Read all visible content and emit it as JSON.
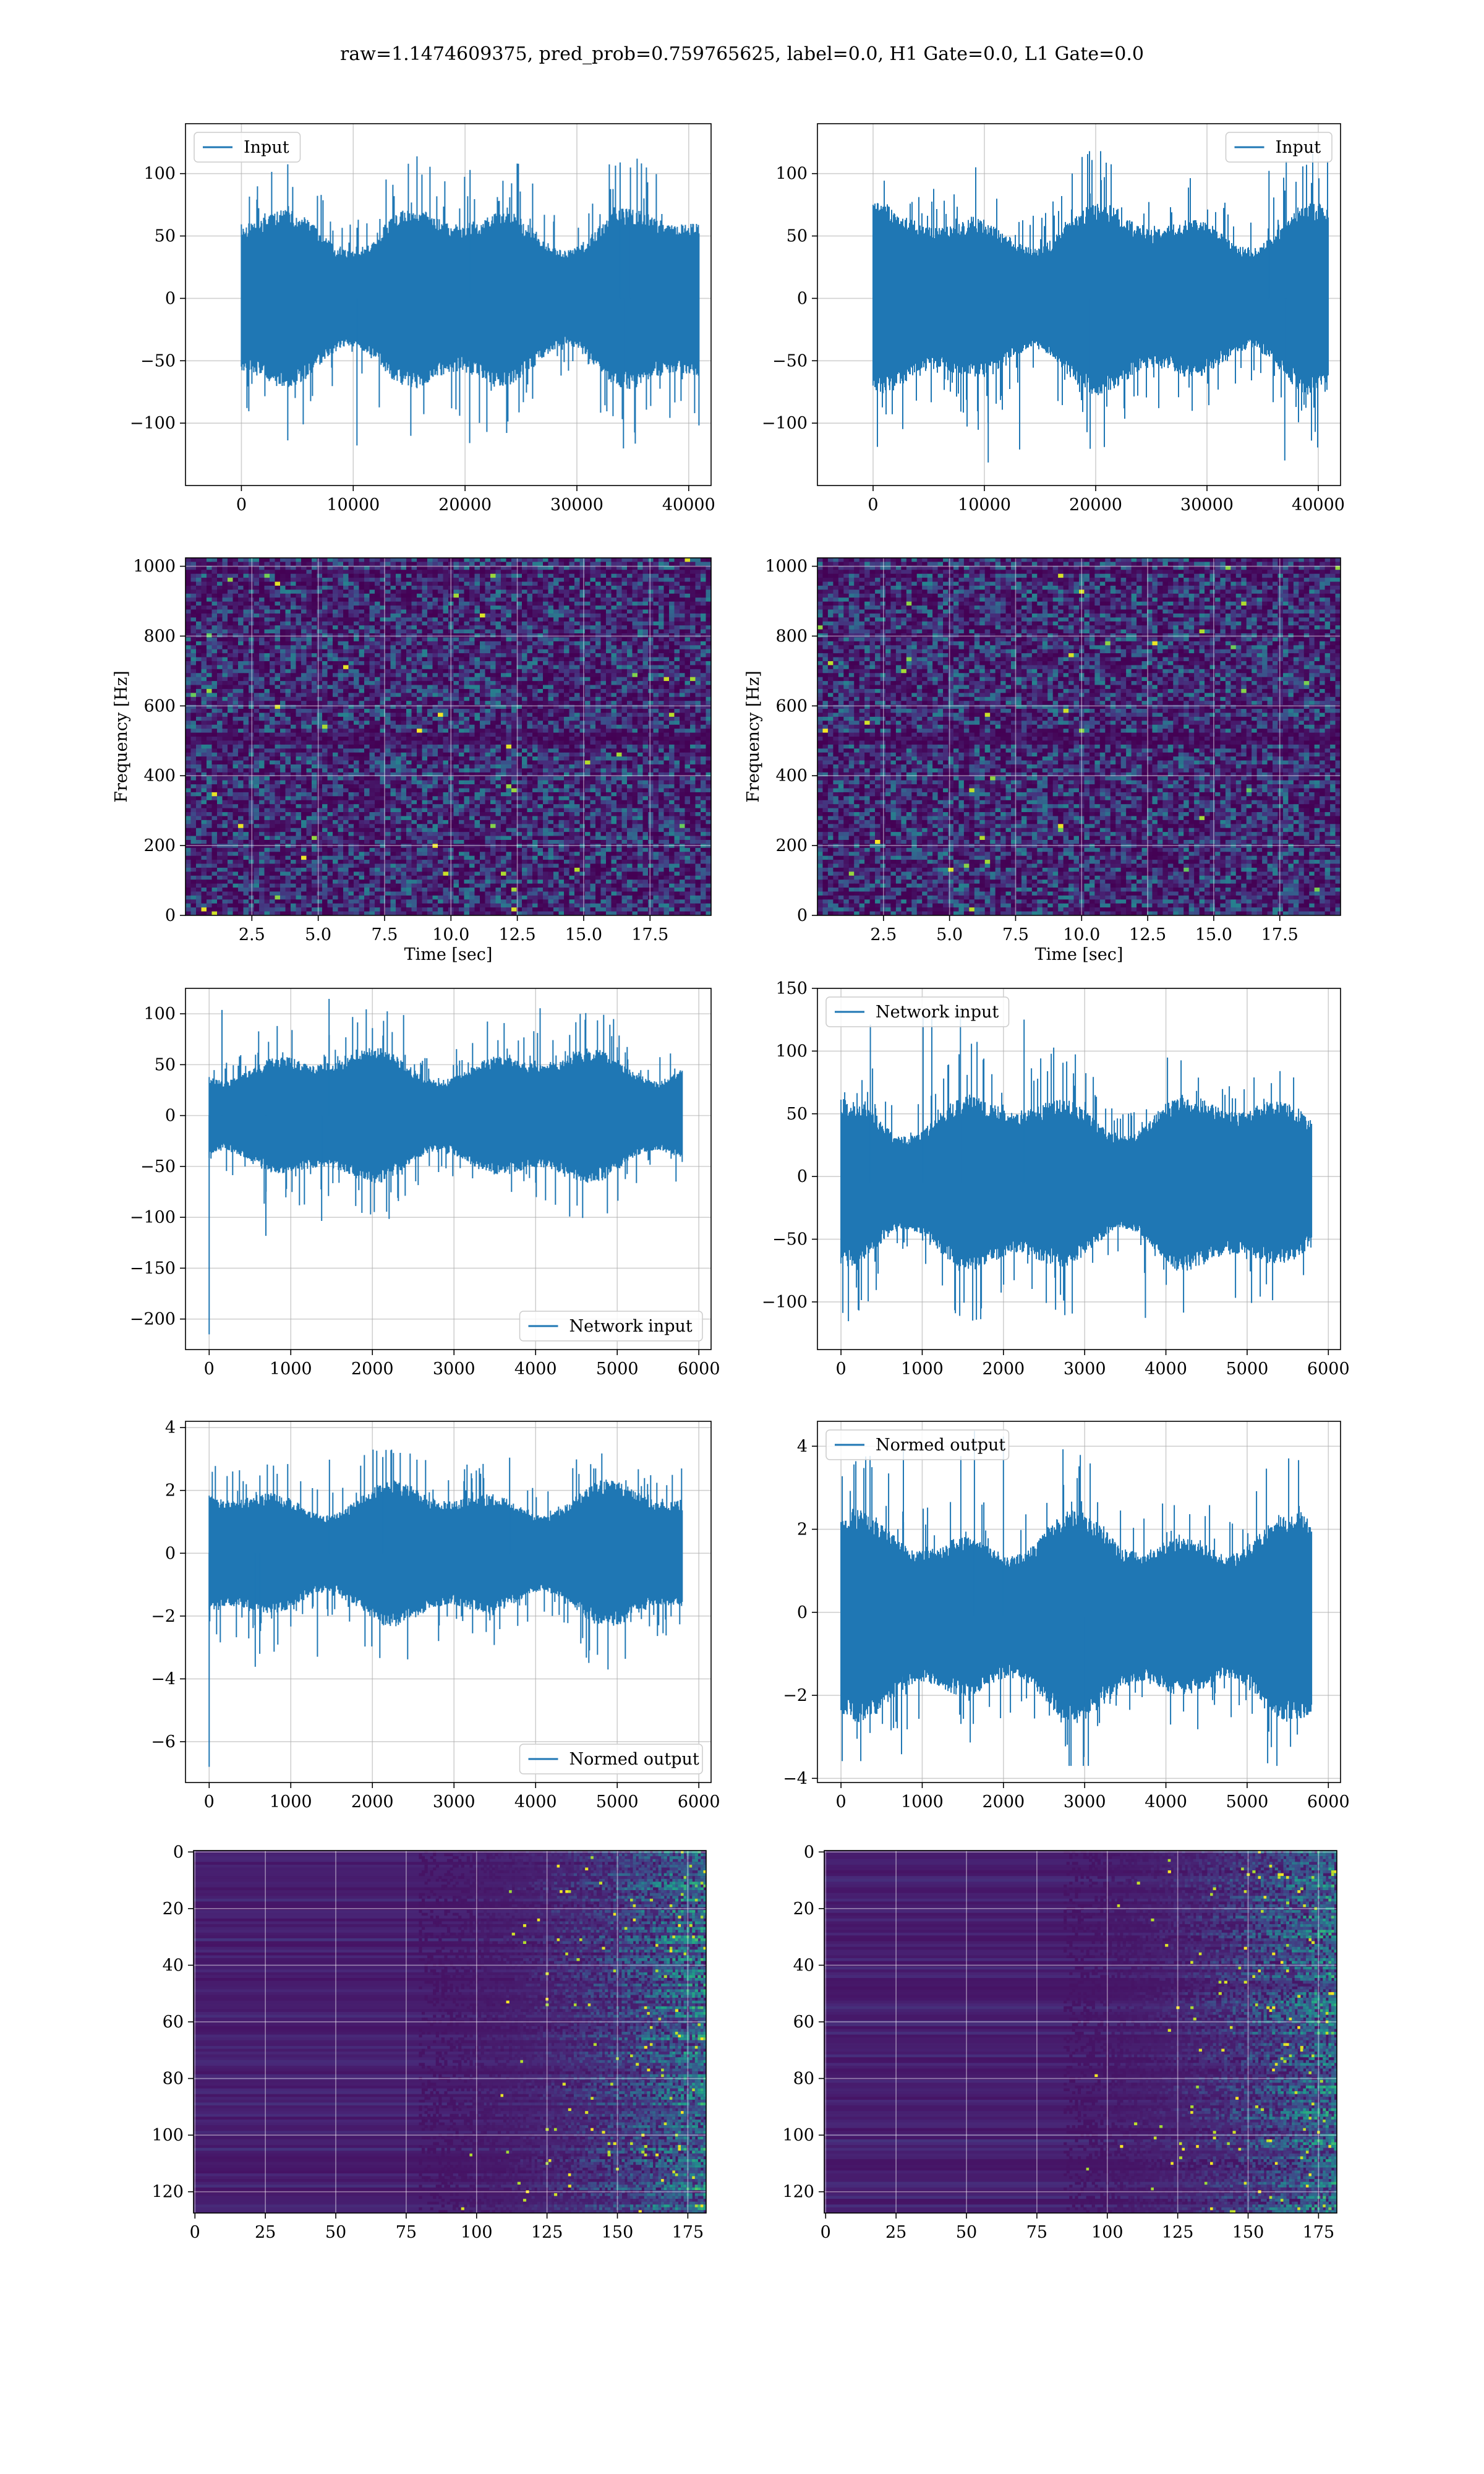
{
  "suptitle": "raw=1.1474609375, pred_prob=0.759765625, label=0.0, H1 Gate=0.0, L1 Gate=0.0",
  "colors": {
    "line": "#1f77b4",
    "grid": "#b0b0b0",
    "viridis_low": "#440154",
    "viridis_mid": "#21918c",
    "viridis_high": "#fde725"
  },
  "chart_data": [
    {
      "id": "r0c0",
      "type": "line",
      "legend": [
        "Input"
      ],
      "legend_loc": "upper left",
      "xlim": [
        -5000,
        42000
      ],
      "ylim": [
        -150,
        140
      ],
      "xticks": [
        0,
        10000,
        20000,
        30000,
        40000
      ],
      "xticklabels": [
        "0",
        "10000",
        "20000",
        "30000",
        "40000"
      ],
      "yticks": [
        -100,
        -50,
        0,
        50,
        100
      ],
      "yticklabels": [
        "−100",
        "−50",
        "0",
        "50",
        "100"
      ],
      "xlabel": "",
      "ylabel": "",
      "grid": true,
      "signal": {
        "n": 40960,
        "band_sigma": 25,
        "envelope": [
          -133,
          120
        ],
        "offset": 0,
        "spike_start": 0
      }
    },
    {
      "id": "r0c1",
      "type": "line",
      "legend": [
        "Input"
      ],
      "legend_loc": "upper right",
      "xlim": [
        -5000,
        42000
      ],
      "ylim": [
        -150,
        140
      ],
      "xticks": [
        0,
        10000,
        20000,
        30000,
        40000
      ],
      "xticklabels": [
        "0",
        "10000",
        "20000",
        "30000",
        "40000"
      ],
      "yticks": [
        -100,
        -50,
        0,
        50,
        100
      ],
      "yticklabels": [
        "−100",
        "−50",
        "0",
        "50",
        "100"
      ],
      "xlabel": "",
      "ylabel": "",
      "grid": true,
      "signal": {
        "n": 40960,
        "band_sigma": 25,
        "envelope": [
          -133,
          118
        ],
        "offset": 0,
        "spike_start": 0
      }
    },
    {
      "id": "r1c0",
      "type": "heatmap",
      "subtype": "spectrogram",
      "xlim": [
        0,
        19.8
      ],
      "ylim": [
        0,
        1024
      ],
      "xticks": [
        2.5,
        5.0,
        7.5,
        10.0,
        12.5,
        15.0,
        17.5
      ],
      "xticklabels": [
        "2.5",
        "5.0",
        "7.5",
        "10.0",
        "12.5",
        "15.0",
        "17.5"
      ],
      "yticks": [
        0,
        200,
        400,
        600,
        800,
        1000
      ],
      "yticklabels": [
        "0",
        "200",
        "400",
        "600",
        "800",
        "1000"
      ],
      "xlabel": "Time [sec]",
      "ylabel": "Frequency [Hz]",
      "grid": true,
      "colormap": "viridis"
    },
    {
      "id": "r1c1",
      "type": "heatmap",
      "subtype": "spectrogram",
      "xlim": [
        0,
        19.8
      ],
      "ylim": [
        0,
        1024
      ],
      "xticks": [
        2.5,
        5.0,
        7.5,
        10.0,
        12.5,
        15.0,
        17.5
      ],
      "xticklabels": [
        "2.5",
        "5.0",
        "7.5",
        "10.0",
        "12.5",
        "15.0",
        "17.5"
      ],
      "yticks": [
        0,
        200,
        400,
        600,
        800,
        1000
      ],
      "yticklabels": [
        "0",
        "200",
        "400",
        "600",
        "800",
        "1000"
      ],
      "xlabel": "Time [sec]",
      "ylabel": "Frequency [Hz]",
      "grid": true,
      "colormap": "viridis"
    },
    {
      "id": "r2c0",
      "type": "line",
      "legend": [
        "Network input"
      ],
      "legend_loc": "lower right",
      "xlim": [
        -290,
        6150
      ],
      "ylim": [
        -230,
        125
      ],
      "xticks": [
        0,
        1000,
        2000,
        3000,
        4000,
        5000,
        6000
      ],
      "xticklabels": [
        "0",
        "1000",
        "2000",
        "3000",
        "4000",
        "5000",
        "6000"
      ],
      "yticks": [
        -200,
        -150,
        -100,
        -50,
        0,
        50,
        100
      ],
      "yticklabels": [
        "−200",
        "−150",
        "−100",
        "−50",
        "0",
        "50",
        "100"
      ],
      "xlabel": "",
      "ylabel": "",
      "grid": true,
      "signal": {
        "n": 5800,
        "band_sigma": 22,
        "envelope": [
          -120,
          115
        ],
        "offset": 0,
        "spike_start": -215
      }
    },
    {
      "id": "r2c1",
      "type": "line",
      "legend": [
        "Network input"
      ],
      "legend_loc": "upper left",
      "xlim": [
        -290,
        6150
      ],
      "ylim": [
        -138,
        150
      ],
      "xticks": [
        0,
        1000,
        2000,
        3000,
        4000,
        5000,
        6000
      ],
      "xticklabels": [
        "0",
        "1000",
        "2000",
        "3000",
        "4000",
        "5000",
        "6000"
      ],
      "yticks": [
        -100,
        -50,
        0,
        50,
        100,
        150
      ],
      "yticklabels": [
        "−100",
        "−50",
        "0",
        "50",
        "100",
        "150"
      ],
      "xlabel": "",
      "ylabel": "",
      "grid": true,
      "signal": {
        "n": 5800,
        "band_sigma": 24,
        "envelope": [
          -120,
          140
        ],
        "offset": -5,
        "spike_start": 0
      }
    },
    {
      "id": "r3c0",
      "type": "line",
      "legend": [
        "Normed output"
      ],
      "legend_loc": "lower right",
      "xlim": [
        -290,
        6150
      ],
      "ylim": [
        -7.3,
        4.2
      ],
      "xticks": [
        0,
        1000,
        2000,
        3000,
        4000,
        5000,
        6000
      ],
      "xticklabels": [
        "0",
        "1000",
        "2000",
        "3000",
        "4000",
        "5000",
        "6000"
      ],
      "yticks": [
        -6,
        -4,
        -2,
        0,
        2,
        4
      ],
      "yticklabels": [
        "−6",
        "−4",
        "−2",
        "0",
        "2",
        "4"
      ],
      "xlabel": "",
      "ylabel": "",
      "grid": true,
      "signal": {
        "n": 5800,
        "band_sigma": 0.75,
        "envelope": [
          -3.7,
          3.3
        ],
        "offset": 0,
        "spike_start": -6.8
      }
    },
    {
      "id": "r3c1",
      "type": "line",
      "legend": [
        "Normed output"
      ],
      "legend_loc": "upper left",
      "xlim": [
        -290,
        6150
      ],
      "ylim": [
        -4.1,
        4.6
      ],
      "xticks": [
        0,
        1000,
        2000,
        3000,
        4000,
        5000,
        6000
      ],
      "xticklabels": [
        "0",
        "1000",
        "2000",
        "3000",
        "4000",
        "5000",
        "6000"
      ],
      "yticks": [
        -4,
        -2,
        0,
        2,
        4
      ],
      "yticklabels": [
        "−4",
        "−2",
        "0",
        "2",
        "4"
      ],
      "xlabel": "",
      "ylabel": "",
      "grid": true,
      "signal": {
        "n": 5800,
        "band_sigma": 0.8,
        "envelope": [
          -3.7,
          4.4
        ],
        "offset": -0.1,
        "spike_start": 0
      }
    },
    {
      "id": "r4c0",
      "type": "heatmap",
      "subtype": "feature-map",
      "xlim": [
        -0.5,
        181.5
      ],
      "ylim": [
        127.5,
        -0.5
      ],
      "xticks": [
        0,
        25,
        50,
        75,
        100,
        125,
        150,
        175
      ],
      "xticklabels": [
        "0",
        "25",
        "50",
        "75",
        "100",
        "125",
        "150",
        "175"
      ],
      "yticks": [
        0,
        20,
        40,
        60,
        80,
        100,
        120
      ],
      "yticklabels": [
        "0",
        "20",
        "40",
        "60",
        "80",
        "100",
        "120"
      ],
      "xlabel": "",
      "ylabel": "",
      "grid": true,
      "colormap": "viridis",
      "active_from_col": 120
    },
    {
      "id": "r4c1",
      "type": "heatmap",
      "subtype": "feature-map",
      "xlim": [
        -0.5,
        181.5
      ],
      "ylim": [
        127.5,
        -0.5
      ],
      "xticks": [
        0,
        25,
        50,
        75,
        100,
        125,
        150,
        175
      ],
      "xticklabels": [
        "0",
        "25",
        "50",
        "75",
        "100",
        "125",
        "150",
        "175"
      ],
      "yticks": [
        0,
        20,
        40,
        60,
        80,
        100,
        120
      ],
      "yticklabels": [
        "0",
        "20",
        "40",
        "60",
        "80",
        "100",
        "120"
      ],
      "xlabel": "",
      "ylabel": "",
      "grid": true,
      "colormap": "viridis",
      "active_from_col": 125
    }
  ]
}
